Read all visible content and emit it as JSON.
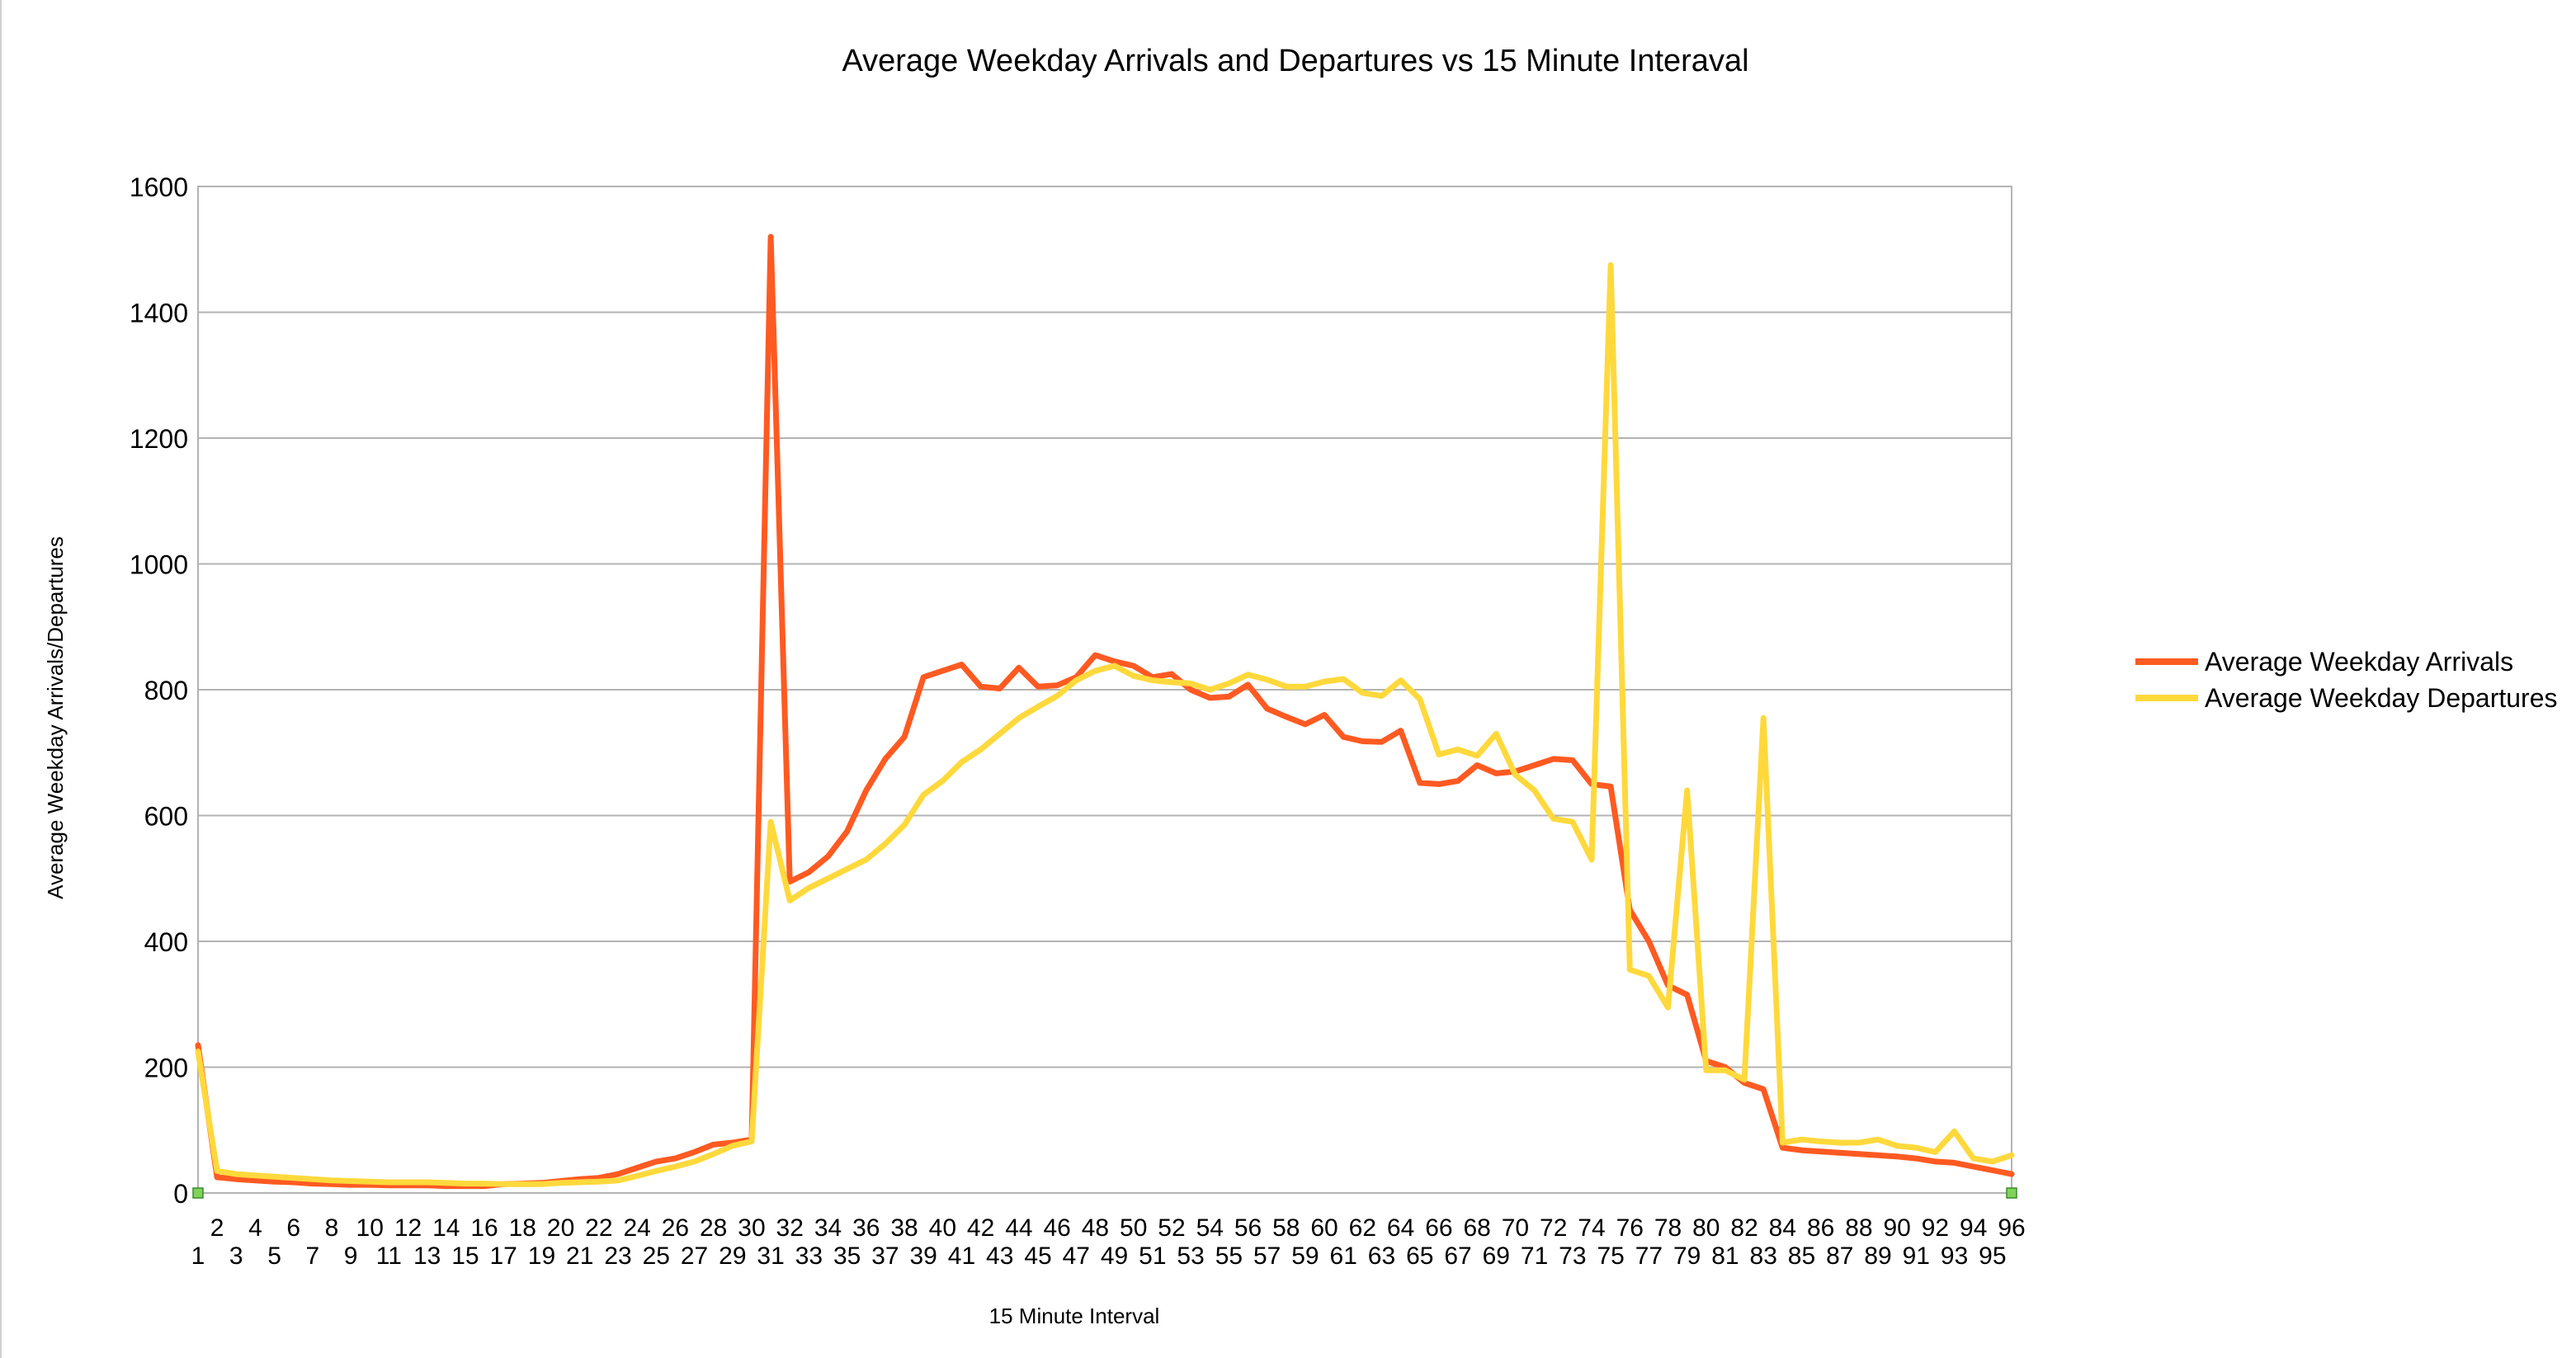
{
  "chart_data": {
    "type": "line",
    "title": "Average Weekday Arrivals and Departures vs 15 Minute Interaval",
    "xlabel": "15 Minute Interval",
    "ylabel": "Average  Weekday  Arrivals/Departures",
    "ylim": [
      0,
      1600
    ],
    "yticks": [
      0,
      200,
      400,
      600,
      800,
      1000,
      1200,
      1400,
      1600
    ],
    "grid": true,
    "legend_position": "right",
    "x": [
      1,
      2,
      3,
      4,
      5,
      6,
      7,
      8,
      9,
      10,
      11,
      12,
      13,
      14,
      15,
      16,
      17,
      18,
      19,
      20,
      21,
      22,
      23,
      24,
      25,
      26,
      27,
      28,
      29,
      30,
      31,
      32,
      33,
      34,
      35,
      36,
      37,
      38,
      39,
      40,
      41,
      42,
      43,
      44,
      45,
      46,
      47,
      48,
      49,
      50,
      51,
      52,
      53,
      54,
      55,
      56,
      57,
      58,
      59,
      60,
      61,
      62,
      63,
      64,
      65,
      66,
      67,
      68,
      69,
      70,
      71,
      72,
      73,
      74,
      75,
      76,
      77,
      78,
      79,
      80,
      81,
      82,
      83,
      84,
      85,
      86,
      87,
      88,
      89,
      90,
      91,
      92,
      93,
      94,
      95,
      96
    ],
    "series": [
      {
        "name": "Average Weekday Arrivals",
        "color": "#ff5a22",
        "values": [
          235,
          25,
          22,
          20,
          18,
          17,
          15,
          14,
          13,
          13,
          12,
          12,
          12,
          11,
          11,
          11,
          14,
          15,
          16,
          19,
          22,
          24,
          30,
          40,
          50,
          55,
          65,
          77,
          80,
          85,
          1520,
          495,
          510,
          535,
          575,
          640,
          690,
          725,
          820,
          830,
          840,
          805,
          802,
          835,
          805,
          807,
          820,
          855,
          845,
          838,
          820,
          825,
          800,
          787,
          789,
          808,
          770,
          757,
          745,
          760,
          725,
          718,
          717,
          735,
          652,
          650,
          655,
          680,
          667,
          670,
          680,
          690,
          688,
          650,
          646,
          450,
          400,
          330,
          315,
          210,
          200,
          175,
          165,
          72,
          68,
          66,
          64,
          62,
          60,
          58,
          55,
          50,
          48,
          42,
          36,
          30
        ]
      },
      {
        "name": "Average Weekday Departures",
        "color": "#ffd93c",
        "values": [
          225,
          35,
          30,
          28,
          26,
          24,
          22,
          20,
          19,
          18,
          17,
          17,
          17,
          16,
          15,
          15,
          14,
          14,
          14,
          16,
          17,
          18,
          20,
          27,
          35,
          42,
          50,
          62,
          75,
          82,
          590,
          465,
          485,
          500,
          515,
          530,
          555,
          585,
          633,
          655,
          685,
          705,
          730,
          755,
          773,
          790,
          815,
          830,
          838,
          822,
          815,
          812,
          810,
          800,
          810,
          824,
          816,
          805,
          805,
          813,
          817,
          795,
          790,
          815,
          785,
          697,
          705,
          695,
          730,
          665,
          640,
          595,
          590,
          530,
          1475,
          355,
          345,
          295,
          640,
          195,
          195,
          180,
          755,
          80,
          85,
          82,
          80,
          80,
          85,
          75,
          72,
          65,
          98,
          55,
          50,
          60
        ]
      }
    ]
  }
}
